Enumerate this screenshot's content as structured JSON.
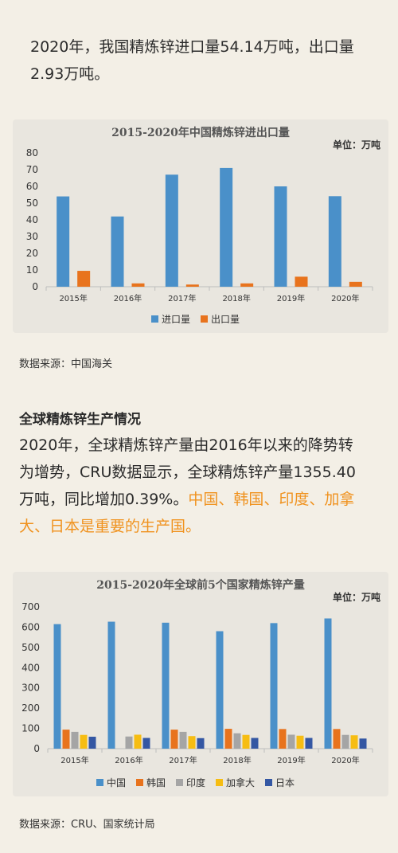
{
  "intro": {
    "line1": "2020年，我国精炼锌进口量54.14万吨，出口量",
    "line2": "2.93万吨。"
  },
  "chart1_source": "数据来源：中国海关",
  "section2": {
    "heading": "全球精炼锌生产情况",
    "line1": "2020年，全球精炼锌产量由2016年以来的降势转",
    "line2": "为增势，CRU数据显示，全球精炼锌产量1355.40",
    "line3_plain": "万吨，同比增加0.39%。",
    "line3_orange": "中国、韩国、印度、加拿",
    "line4_orange": "大、日本是重要的生产国。"
  },
  "chart2_source": "数据来源：CRU、国家统计局",
  "chart_data": [
    {
      "type": "bar",
      "title": "2015-2020年中国精炼锌进出口量",
      "unit": "单位：万吨",
      "categories": [
        "2015年",
        "2016年",
        "2017年",
        "2018年",
        "2019年",
        "2020年"
      ],
      "ylim": [
        0,
        80
      ],
      "yticks": [
        0,
        10,
        20,
        30,
        40,
        50,
        60,
        70,
        80
      ],
      "grid": false,
      "legend": "bottom",
      "series": [
        {
          "name": "进口量",
          "color": "#4a90c9",
          "values": [
            54,
            42,
            67,
            71,
            60,
            54.14
          ]
        },
        {
          "name": "出口量",
          "color": "#e8731d",
          "values": [
            9.5,
            2,
            1.3,
            2,
            6,
            2.93
          ]
        }
      ]
    },
    {
      "type": "bar",
      "title": "2015-2020年全球前5个国家精炼锌产量",
      "unit": "单位：万吨",
      "categories": [
        "2015年",
        "2016年",
        "2017年",
        "2018年",
        "2019年",
        "2020年"
      ],
      "ylim": [
        0,
        700
      ],
      "yticks": [
        0,
        100,
        200,
        300,
        400,
        500,
        600,
        700
      ],
      "grid": false,
      "legend": "bottom",
      "series": [
        {
          "name": "中国",
          "color": "#4a90c9",
          "values": [
            615,
            627,
            622,
            580,
            620,
            643
          ]
        },
        {
          "name": "韩国",
          "color": "#e8731d",
          "values": [
            94,
            0,
            94,
            98,
            97,
            97
          ]
        },
        {
          "name": "印度",
          "color": "#a5a5a5",
          "values": [
            83,
            60,
            83,
            76,
            69,
            68
          ]
        },
        {
          "name": "加拿大",
          "color": "#f6bd13",
          "values": [
            68,
            69,
            62,
            68,
            64,
            66
          ]
        },
        {
          "name": "日本",
          "color": "#3457a3",
          "values": [
            59,
            53,
            52,
            53,
            53,
            50
          ]
        }
      ]
    }
  ]
}
